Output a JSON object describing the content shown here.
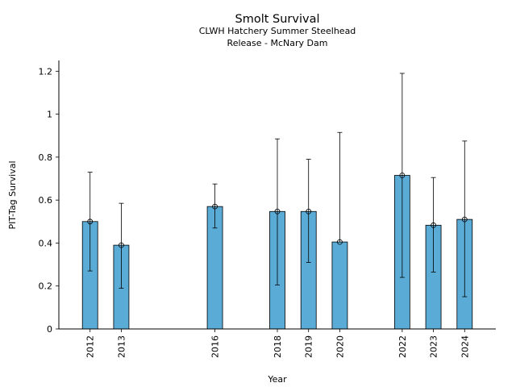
{
  "chart_data": {
    "type": "bar",
    "title": "Smolt Survival",
    "subtitle_lines": [
      "CLWH Hatchery Summer Steelhead",
      "Release - McNary Dam"
    ],
    "xlabel": "Year",
    "ylabel": "PIT-Tag Survival",
    "ylim": [
      0,
      1.25
    ],
    "xlim": [
      2011,
      2025
    ],
    "yticks": [
      0,
      0.2,
      0.4,
      0.6,
      0.8,
      1,
      1.2
    ],
    "ytick_labels": [
      "0",
      "0.2",
      "0.4",
      "0.6",
      "0.8",
      "1",
      "1.2"
    ],
    "bar_color": "#5aabd6",
    "grid": false,
    "points": [
      {
        "year": 2012,
        "label": "2012",
        "value": 0.5,
        "lower": 0.27,
        "upper": 0.73
      },
      {
        "year": 2013,
        "label": "2013",
        "value": 0.39,
        "lower": 0.19,
        "upper": 0.585
      },
      {
        "year": 2016,
        "label": "2016",
        "value": 0.57,
        "lower": 0.47,
        "upper": 0.675
      },
      {
        "year": 2018,
        "label": "2018",
        "value": 0.547,
        "lower": 0.205,
        "upper": 0.885
      },
      {
        "year": 2019,
        "label": "2019",
        "value": 0.547,
        "lower": 0.31,
        "upper": 0.79
      },
      {
        "year": 2020,
        "label": "2020",
        "value": 0.405,
        "lower": null,
        "upper": 0.915
      },
      {
        "year": 2022,
        "label": "2022",
        "value": 0.715,
        "lower": 0.24,
        "upper": 1.19
      },
      {
        "year": 2023,
        "label": "2023",
        "value": 0.483,
        "lower": 0.265,
        "upper": 0.705
      },
      {
        "year": 2024,
        "label": "2024",
        "value": 0.51,
        "lower": 0.15,
        "upper": 0.875
      }
    ]
  }
}
